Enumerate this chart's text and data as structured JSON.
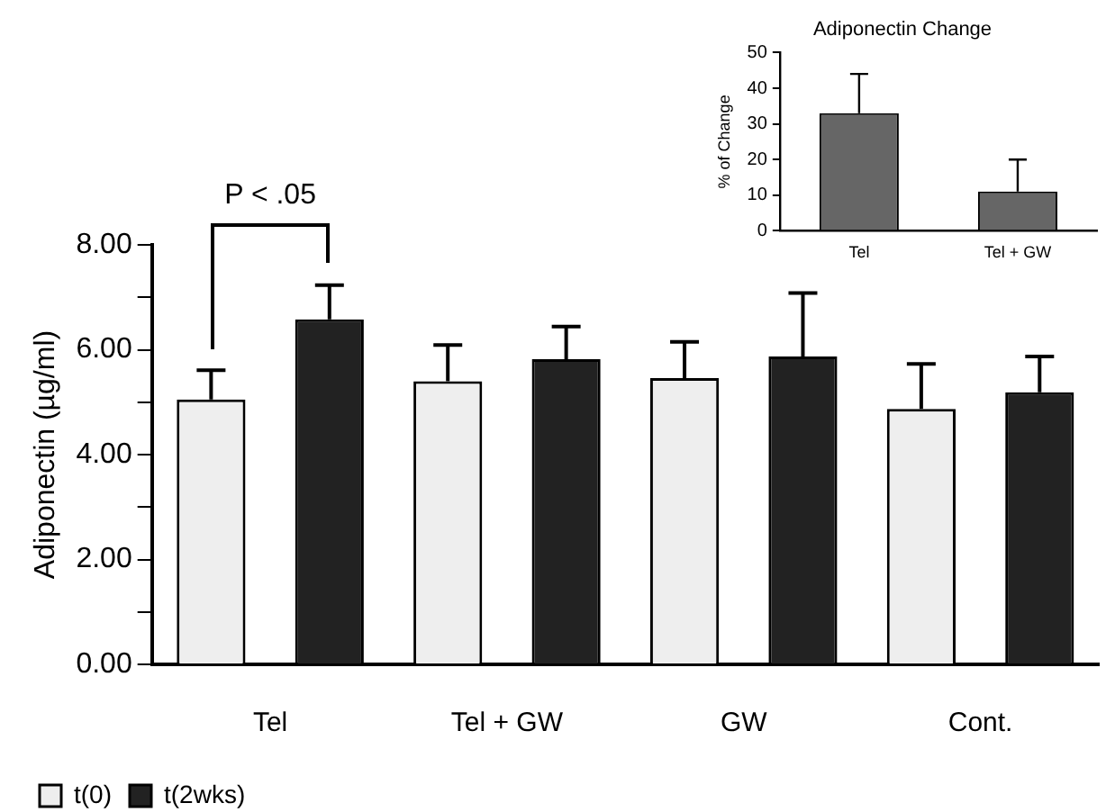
{
  "chart_data": [
    {
      "type": "bar",
      "ylabel": "Adiponectin (µg/ml)",
      "categories": [
        "Tel",
        "Tel + GW",
        "GW",
        "Cont."
      ],
      "series": [
        {
          "name": "t(0)",
          "color": "#eeeeee",
          "values": [
            5.05,
            5.4,
            5.46,
            4.87
          ],
          "errors": [
            [
              5.05,
              5.61
            ],
            [
              5.4,
              6.09
            ],
            [
              5.46,
              6.15
            ],
            [
              4.87,
              5.73
            ]
          ]
        },
        {
          "name": "t(2wks)",
          "color": "#222222",
          "values": [
            6.58,
            5.82,
            5.87,
            5.19
          ],
          "errors": [
            [
              6.58,
              7.23
            ],
            [
              5.82,
              6.44
            ],
            [
              5.87,
              7.08
            ],
            [
              5.19,
              5.87
            ]
          ]
        }
      ],
      "ylim": [
        0,
        8
      ],
      "yticks": [
        {
          "value": 0,
          "label": "0.00"
        },
        {
          "value": 2,
          "label": "2.00"
        },
        {
          "value": 4,
          "label": "4.00"
        },
        {
          "value": 6,
          "label": "6.00"
        },
        {
          "value": 8,
          "label": "8.00"
        }
      ],
      "annotations": [
        "P < .05"
      ],
      "legend": "bottom left",
      "grid": false
    },
    {
      "type": "bar",
      "title": "Adiponectin Change",
      "ylabel": "% of Change",
      "categories": [
        "Tel",
        "Tel + GW"
      ],
      "values": [
        33,
        11
      ],
      "errors": [
        [
          33,
          44
        ],
        [
          11,
          20
        ]
      ],
      "color": "#666666",
      "ylim": [
        0,
        50
      ],
      "yticks": [
        0,
        10,
        20,
        30,
        40,
        50
      ],
      "legend": false,
      "grid": false
    }
  ]
}
